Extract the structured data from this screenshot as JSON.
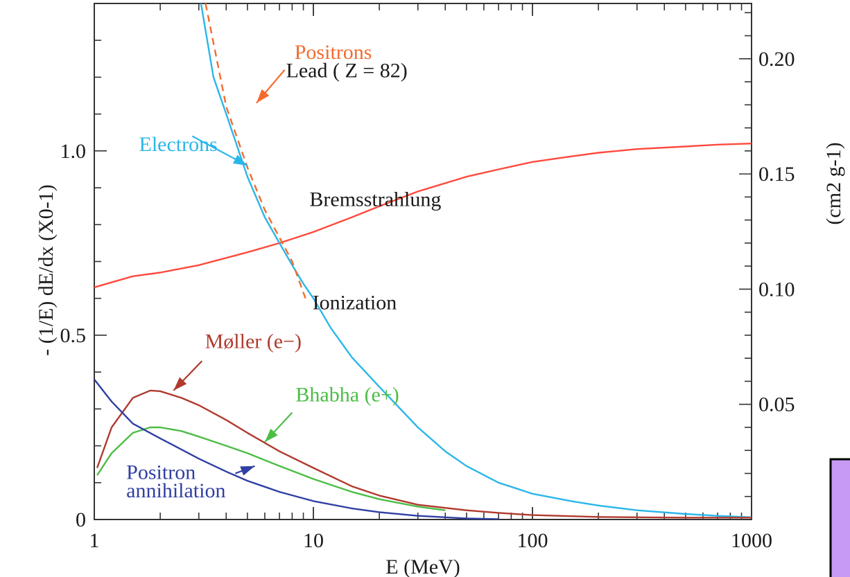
{
  "chart_data": {
    "type": "line",
    "xscale": "log",
    "xlim": [
      1,
      1000
    ],
    "ylim": [
      0,
      1.4
    ],
    "y2lim": [
      0,
      0.224
    ],
    "xlabel": "E  (MeV)",
    "ylabel": "- (1/E) dE/dx  (X0-1)",
    "y2label": "(cm2 g-1)",
    "xticks": [
      {
        "v": 1,
        "label": "1"
      },
      {
        "v": 10,
        "label": "10"
      },
      {
        "v": 100,
        "label": "100"
      },
      {
        "v": 1000,
        "label": "1000"
      }
    ],
    "yticks": [
      {
        "v": 0,
        "label": "0"
      },
      {
        "v": 0.5,
        "label": "0.5"
      },
      {
        "v": 1.0,
        "label": "1.0"
      }
    ],
    "y2ticks": [
      {
        "v": 0.05,
        "label": "0.05"
      },
      {
        "v": 0.1,
        "label": "0.10"
      },
      {
        "v": 0.15,
        "label": "0.15"
      },
      {
        "v": 0.2,
        "label": "0.20"
      }
    ],
    "grid": false,
    "series": [
      {
        "name": "Bremsstrahlung",
        "color": "#ff4a3d",
        "dash": false,
        "x": [
          1,
          1.5,
          2,
          3,
          5,
          7,
          10,
          15,
          20,
          30,
          50,
          70,
          100,
          150,
          200,
          300,
          500,
          700,
          1000
        ],
        "y": [
          0.63,
          0.66,
          0.67,
          0.69,
          0.725,
          0.75,
          0.78,
          0.82,
          0.85,
          0.89,
          0.93,
          0.95,
          0.97,
          0.985,
          0.995,
          1.005,
          1.012,
          1.017,
          1.02
        ]
      },
      {
        "name": "Electrons",
        "color": "#2ab6e9",
        "dash": false,
        "x": [
          3.07,
          3.5,
          4,
          5,
          6,
          7,
          8,
          9,
          10,
          12,
          15,
          20,
          30,
          40,
          50,
          70,
          100,
          150,
          200,
          300,
          500,
          700,
          1000
        ],
        "y": [
          1.4,
          1.2,
          1.1,
          0.93,
          0.82,
          0.75,
          0.69,
          0.64,
          0.6,
          0.52,
          0.44,
          0.36,
          0.25,
          0.185,
          0.145,
          0.1,
          0.07,
          0.05,
          0.038,
          0.025,
          0.015,
          0.01,
          0.006
        ]
      },
      {
        "name": "Positrons",
        "color": "#f36b2d",
        "dash": true,
        "x": [
          3.22,
          4,
          5,
          6,
          7,
          8,
          9.2
        ],
        "y": [
          1.4,
          1.12,
          0.955,
          0.84,
          0.765,
          0.7,
          0.6
        ]
      },
      {
        "name": "Ionization",
        "color": "#2ab6e9",
        "dash": false,
        "x": [],
        "y": []
      },
      {
        "name": "Møller (e−)",
        "color": "#b03a2e",
        "dash": false,
        "x": [
          1.03,
          1.2,
          1.5,
          1.8,
          2,
          2.5,
          3,
          4,
          5,
          7,
          10,
          15,
          20,
          30,
          50,
          70,
          100,
          150,
          200,
          300,
          500,
          700,
          1000
        ],
        "y": [
          0.14,
          0.25,
          0.33,
          0.35,
          0.348,
          0.33,
          0.31,
          0.27,
          0.235,
          0.185,
          0.14,
          0.09,
          0.065,
          0.04,
          0.025,
          0.018,
          0.012,
          0.009,
          0.007,
          0.006,
          0.005,
          0.005,
          0.005
        ]
      },
      {
        "name": "Bhabha (e+)",
        "color": "#4cbd45",
        "dash": false,
        "x": [
          1.03,
          1.2,
          1.5,
          1.8,
          2,
          2.5,
          3,
          4,
          5,
          7,
          10,
          15,
          20,
          30,
          40
        ],
        "y": [
          0.12,
          0.18,
          0.235,
          0.25,
          0.25,
          0.24,
          0.225,
          0.2,
          0.18,
          0.145,
          0.11,
          0.075,
          0.055,
          0.035,
          0.025
        ]
      },
      {
        "name": "Positron annihilation",
        "color": "#2f3fa3",
        "dash": false,
        "x": [
          1,
          1.2,
          1.5,
          2,
          2.5,
          3,
          4,
          5,
          7,
          10,
          15,
          20,
          30,
          50,
          70
        ],
        "y": [
          0.38,
          0.32,
          0.26,
          0.22,
          0.19,
          0.165,
          0.13,
          0.105,
          0.075,
          0.05,
          0.03,
          0.02,
          0.01,
          0.003,
          0.001
        ]
      }
    ],
    "annotations": [
      {
        "text": "Lead  ( Z = 82)",
        "x": 7.5,
        "y": 1.2,
        "color": "#1a1a1a"
      },
      {
        "text": "Positrons",
        "x": 8.2,
        "y": 1.25,
        "color": "#f36b2d"
      },
      {
        "text": "Electrons",
        "x": 1.6,
        "y": 1.0,
        "color": "#2ab6e9"
      },
      {
        "text": "Bremsstrahlung",
        "x": 9.6,
        "y": 0.85,
        "color": "#1a1a1a"
      },
      {
        "text": "Ionization",
        "x": 9.9,
        "y": 0.57,
        "color": "#1a1a1a"
      },
      {
        "text": "Møller (e−)",
        "x": 3.2,
        "y": 0.465,
        "color": "#b03a2e"
      },
      {
        "text": "Bhabha (e+)",
        "x": 8.3,
        "y": 0.32,
        "color": "#4cbd45"
      },
      {
        "text": "Positron",
        "x": 1.4,
        "y": 0.11,
        "color": "#2f3fa3"
      },
      {
        "text": "annihilation",
        "x": 1.4,
        "y": 0.06,
        "color": "#2f3fa3"
      }
    ],
    "arrows": [
      {
        "name": "positrons-arrow",
        "color": "#f36b2d",
        "from": [
          7.4,
          1.22
        ],
        "to": [
          5.5,
          1.13
        ]
      },
      {
        "name": "electrons-arrow",
        "color": "#2ab6e9",
        "from": [
          2.8,
          1.04
        ],
        "to": [
          5.0,
          0.96
        ]
      },
      {
        "name": "moller-arrow",
        "color": "#b03a2e",
        "from": [
          3.1,
          0.43
        ],
        "to": [
          2.3,
          0.35
        ]
      },
      {
        "name": "bhabha-arrow",
        "color": "#4cbd45",
        "from": [
          8.0,
          0.29
        ],
        "to": [
          6.0,
          0.21
        ]
      },
      {
        "name": "annihilation-arrow",
        "color": "#2f3fa3",
        "from": [
          4.4,
          0.125
        ],
        "to": [
          5.4,
          0.145
        ]
      }
    ]
  },
  "overlay_box": {
    "color": "#c79bf5"
  }
}
